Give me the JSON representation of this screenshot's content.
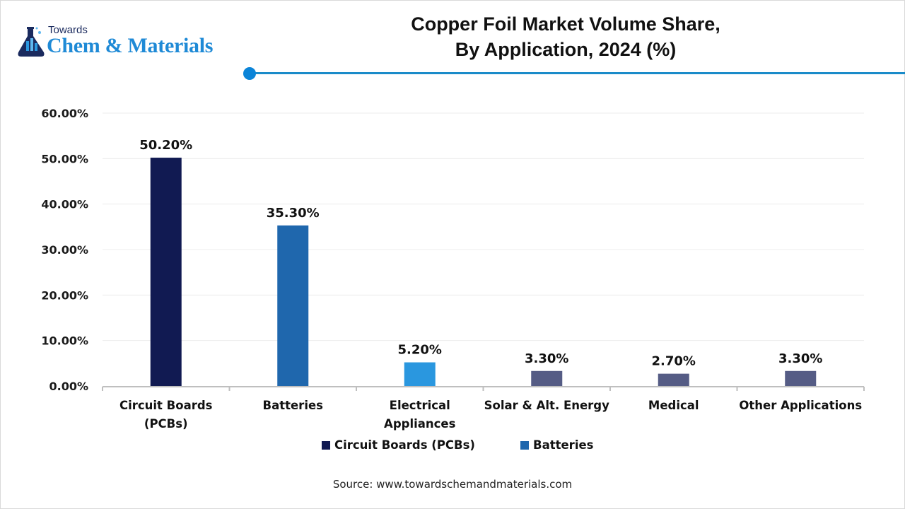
{
  "brand": {
    "towards": "Towards",
    "name": "Chem & Materials"
  },
  "header": {
    "title_line1": "Copper Foil Market Volume Share,",
    "title_line2": "By Application, 2024 (%)",
    "accent_color": "#1a8bc9"
  },
  "legend": [
    {
      "label": "Circuit Boards (PCBs)",
      "color": "#111a52"
    },
    {
      "label": "Batteries",
      "color": "#1f67ad"
    }
  ],
  "source": "Source: www.towardschemandmaterials.com",
  "chart_data": {
    "type": "bar",
    "title": "Copper Foil Market Volume Share, By Application, 2024 (%)",
    "xlabel": "",
    "ylabel": "",
    "ylim": [
      0,
      60
    ],
    "yticks": [
      0,
      10,
      20,
      30,
      40,
      50,
      60
    ],
    "ytick_labels": [
      "0.00%",
      "10.00%",
      "20.00%",
      "30.00%",
      "40.00%",
      "50.00%",
      "60.00%"
    ],
    "grid": true,
    "legend_position": "bottom",
    "categories": [
      [
        "Circuit Boards",
        "(PCBs)"
      ],
      [
        "Batteries"
      ],
      [
        "Electrical",
        "Appliances"
      ],
      [
        "Solar & Alt. Energy"
      ],
      [
        "Medical"
      ],
      [
        "Other Applications"
      ]
    ],
    "values": [
      50.2,
      35.3,
      5.2,
      3.3,
      2.7,
      3.3
    ],
    "value_labels": [
      "50.20%",
      "35.30%",
      "5.20%",
      "3.30%",
      "2.70%",
      "3.30%"
    ],
    "colors": [
      "#111a52",
      "#1f67ad",
      "#2a97df",
      "#555c85",
      "#555c85",
      "#555c85"
    ]
  }
}
